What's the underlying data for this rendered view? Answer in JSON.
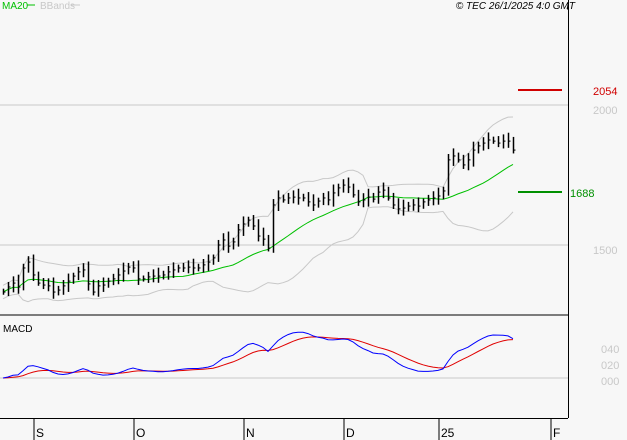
{
  "legend": {
    "ma_label": "MA20",
    "bbands_label": "BBands"
  },
  "copyright": "© TEC 26/1/2025 4:0 GMT",
  "colors": {
    "ma": "#00c000",
    "bbands": "#c8c8c8",
    "bars": "#000000",
    "macd": "#0000ff",
    "signal": "#e00000",
    "resistance": "#d00000",
    "support": "#009000"
  },
  "levels": {
    "resistance": {
      "value": 20.54,
      "label": "2054"
    },
    "support": {
      "value": 16.88,
      "label": "1688"
    }
  },
  "macd_label": "MACD",
  "chart_data": {
    "type": "ohlc",
    "title": "",
    "price_axis": {
      "ticks": [
        {
          "value": 20.0,
          "label": "2000"
        },
        {
          "value": 15.0,
          "label": "1500"
        }
      ]
    },
    "macd_axis": {
      "ticks": [
        {
          "value": 0.4,
          "label": "040"
        },
        {
          "value": 0.2,
          "label": "020"
        },
        {
          "value": 0.0,
          "label": "000"
        }
      ]
    },
    "x_ticks": [
      "S",
      "O",
      "N",
      "D",
      "25",
      "F"
    ],
    "closes": [
      13.32,
      13.5,
      13.64,
      13.5,
      14.18,
      14.39,
      13.93,
      13.64,
      13.57,
      13.54,
      13.32,
      13.39,
      13.54,
      13.71,
      13.89,
      14.04,
      14.11,
      13.61,
      13.32,
      13.54,
      13.57,
      13.71,
      13.79,
      13.93,
      14.07,
      14.21,
      14.18,
      13.79,
      13.79,
      13.86,
      13.89,
      13.89,
      13.93,
      14.04,
      14.11,
      14.18,
      14.18,
      14.21,
      14.18,
      14.18,
      14.29,
      14.39,
      14.54,
      15.0,
      15.18,
      14.96,
      15.11,
      15.54,
      15.75,
      15.89,
      15.68,
      15.32,
      15.21,
      14.89,
      16.43,
      16.68,
      16.61,
      16.68,
      16.71,
      16.68,
      16.68,
      16.54,
      16.43,
      16.57,
      16.68,
      16.61,
      16.86,
      17.04,
      17.14,
      17.07,
      16.79,
      16.54,
      16.61,
      16.71,
      16.64,
      16.89,
      16.96,
      16.68,
      16.43,
      16.29,
      16.32,
      16.39,
      16.43,
      16.39,
      16.54,
      16.61,
      16.68,
      16.75,
      16.93,
      18.04,
      18.18,
      18.04,
      17.86,
      18.04,
      18.39,
      18.54,
      18.64,
      18.75,
      18.71,
      18.64,
      18.71,
      18.71,
      18.39
    ],
    "indicators": [
      "MA20",
      "BBands(20,2)",
      "MACD(12,26,9)"
    ]
  }
}
